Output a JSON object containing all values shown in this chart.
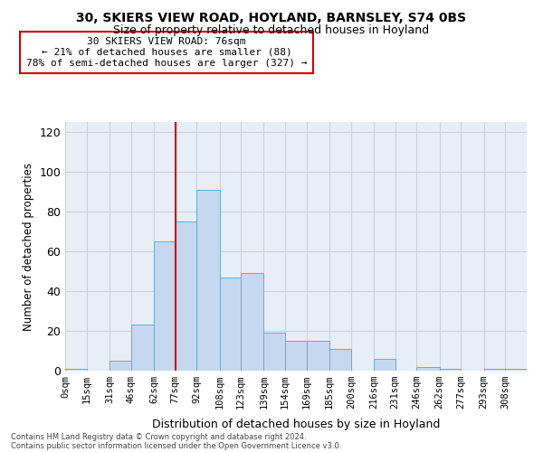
{
  "title1": "30, SKIERS VIEW ROAD, HOYLAND, BARNSLEY, S74 0BS",
  "title2": "Size of property relative to detached houses in Hoyland",
  "xlabel": "Distribution of detached houses by size in Hoyland",
  "ylabel": "Number of detached properties",
  "footer1": "Contains HM Land Registry data © Crown copyright and database right 2024.",
  "footer2": "Contains public sector information licensed under the Open Government Licence v3.0.",
  "bar_values": [
    1,
    0,
    5,
    23,
    65,
    75,
    91,
    47,
    49,
    19,
    15,
    15,
    11,
    0,
    6,
    0,
    2,
    1,
    0,
    1,
    1
  ],
  "bar_left_edges": [
    0,
    15,
    31,
    46,
    62,
    77,
    92,
    108,
    123,
    139,
    154,
    169,
    185,
    200,
    216,
    231,
    246,
    262,
    277,
    293,
    308
  ],
  "bar_widths": [
    15,
    16,
    15,
    16,
    15,
    15,
    16,
    15,
    16,
    15,
    15,
    16,
    15,
    16,
    15,
    15,
    16,
    15,
    16,
    15,
    15
  ],
  "x_labels": [
    "0sqm",
    "15sqm",
    "31sqm",
    "46sqm",
    "62sqm",
    "77sqm",
    "92sqm",
    "108sqm",
    "123sqm",
    "139sqm",
    "154sqm",
    "169sqm",
    "185sqm",
    "200sqm",
    "216sqm",
    "231sqm",
    "246sqm",
    "262sqm",
    "277sqm",
    "293sqm",
    "308sqm"
  ],
  "bar_color": "#c5d8ef",
  "bar_edge_color": "#6aaad4",
  "vline_x": 77,
  "vline_color": "#cc0000",
  "annotation_text": "30 SKIERS VIEW ROAD: 76sqm\n← 21% of detached houses are smaller (88)\n78% of semi-detached houses are larger (327) →",
  "annotation_box_color": "white",
  "annotation_box_edge": "#cc0000",
  "ylim": [
    0,
    125
  ],
  "yticks": [
    0,
    20,
    40,
    60,
    80,
    100,
    120
  ],
  "xlim": [
    0,
    323
  ],
  "grid_color": "#c8d0dc",
  "bg_color": "#e8eef5",
  "title1_fontsize": 10,
  "title2_fontsize": 9
}
